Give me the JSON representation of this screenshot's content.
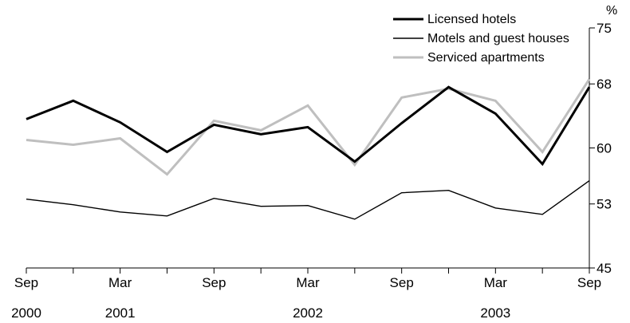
{
  "chart_data": {
    "type": "line",
    "title": "",
    "xlabel": "",
    "ylabel": "%",
    "ylim": [
      45,
      75
    ],
    "yticks": [
      {
        "value": 45,
        "label": "45"
      },
      {
        "value": 53,
        "label": "53"
      },
      {
        "value": 60,
        "label": "60"
      },
      {
        "value": 68,
        "label": "68"
      },
      {
        "value": 75,
        "label": "75"
      }
    ],
    "x": [
      "Sep 2000",
      "Dec 2000",
      "Mar 2001",
      "Jun 2001",
      "Sep 2001",
      "Dec 2001",
      "Mar 2002",
      "Jun 2002",
      "Sep 2002",
      "Dec 2002",
      "Mar 2003",
      "Jun 2003",
      "Sep 2003"
    ],
    "xtick_labels": [
      {
        "index": 0,
        "month": "Sep",
        "year": "2000"
      },
      {
        "index": 2,
        "month": "Mar",
        "year": "2001"
      },
      {
        "index": 4,
        "month": "Sep",
        "year": ""
      },
      {
        "index": 6,
        "month": "Mar",
        "year": "2002"
      },
      {
        "index": 8,
        "month": "Sep",
        "year": ""
      },
      {
        "index": 10,
        "month": "Mar",
        "year": "2003"
      },
      {
        "index": 12,
        "month": "Sep",
        "year": ""
      }
    ],
    "grid": false,
    "legend_position": "top-right",
    "series": [
      {
        "name": "Licensed hotels",
        "color": "#000000",
        "style": "thick",
        "values": [
          63.6,
          65.9,
          63.2,
          59.5,
          62.9,
          61.7,
          62.6,
          58.3,
          63.1,
          67.6,
          64.3,
          58.0,
          67.6
        ]
      },
      {
        "name": "Motels and guest houses",
        "color": "#000000",
        "style": "thin",
        "values": [
          53.6,
          52.9,
          52.0,
          51.5,
          53.7,
          52.7,
          52.8,
          51.1,
          54.4,
          54.7,
          52.5,
          51.7,
          55.9
        ]
      },
      {
        "name": "Serviced apartments",
        "color": "#bfbfbf",
        "style": "thick",
        "values": [
          61.0,
          60.4,
          61.2,
          56.7,
          63.4,
          62.2,
          65.3,
          57.9,
          66.3,
          67.4,
          65.9,
          59.5,
          68.6
        ]
      }
    ]
  }
}
